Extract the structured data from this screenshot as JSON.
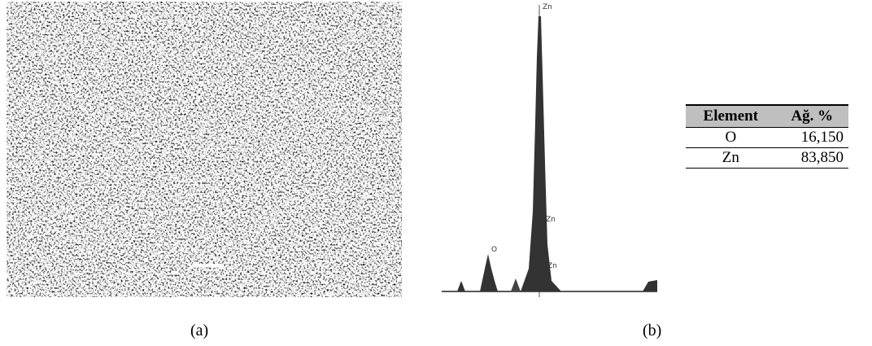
{
  "figure": {
    "panel_a": {
      "caption": "(a)"
    },
    "panel_b": {
      "caption": "(b)",
      "peak_labels": [
        "Zn",
        "O",
        "Zn",
        "Zn"
      ]
    },
    "table": {
      "header": [
        "Element",
        "Ağ. %"
      ],
      "rows": [
        [
          "O",
          "16,150"
        ],
        [
          "Zn",
          "83,850"
        ]
      ]
    }
  }
}
